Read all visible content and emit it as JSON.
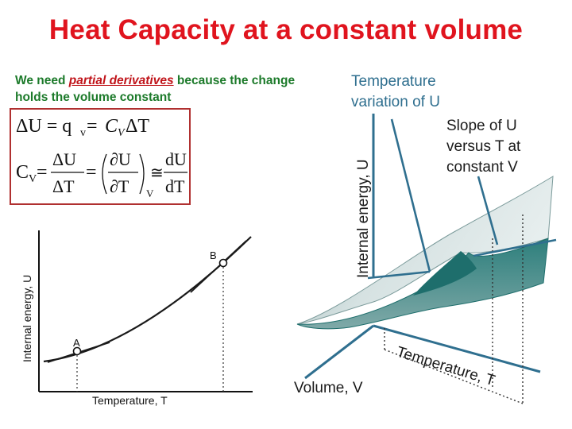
{
  "title": "Heat Capacity at a constant volume",
  "intro": {
    "pre": "We need ",
    "highlight": "partial derivatives",
    "post": " because the change holds the volume constant"
  },
  "equations": {
    "eq1": {
      "lhs": "ΔU = q",
      "sub": "v",
      "mid": " = ",
      "c": "C",
      "csub": "V",
      "rhs": "ΔT"
    },
    "eq2": {
      "lhs": "C",
      "lhs_sub": "V",
      "eq": "=",
      "frac1_num": "ΔU",
      "frac1_den": "ΔT",
      "frac2_num": "∂U",
      "frac2_den": "∂T",
      "frac2_sub": "V",
      "approx": "≅",
      "frac3_num": "dU",
      "frac3_den": "dT"
    }
  },
  "graph2d": {
    "ylabel": "Internal energy, U",
    "xlabel": "Temperature, T",
    "point_a": "A",
    "point_b": "B"
  },
  "graph3d": {
    "caption_line1": "Temperature",
    "caption_line2": "variation of U",
    "slope_line1": "Slope of U",
    "slope_line2": "versus T at",
    "slope_line3": "constant V",
    "zlabel": "Internal energy, U",
    "tlabel": "Temperature, T",
    "vlabel": "Volume, V"
  },
  "colors": {
    "title": "#e0141e",
    "intro_text": "#1c7a2a",
    "highlight": "#c0141a",
    "box_border": "#b03030",
    "diagram_blue": "#2f6f8f",
    "surface_dark": "#1e6e6c",
    "surface_light": "#d8e4e4"
  }
}
